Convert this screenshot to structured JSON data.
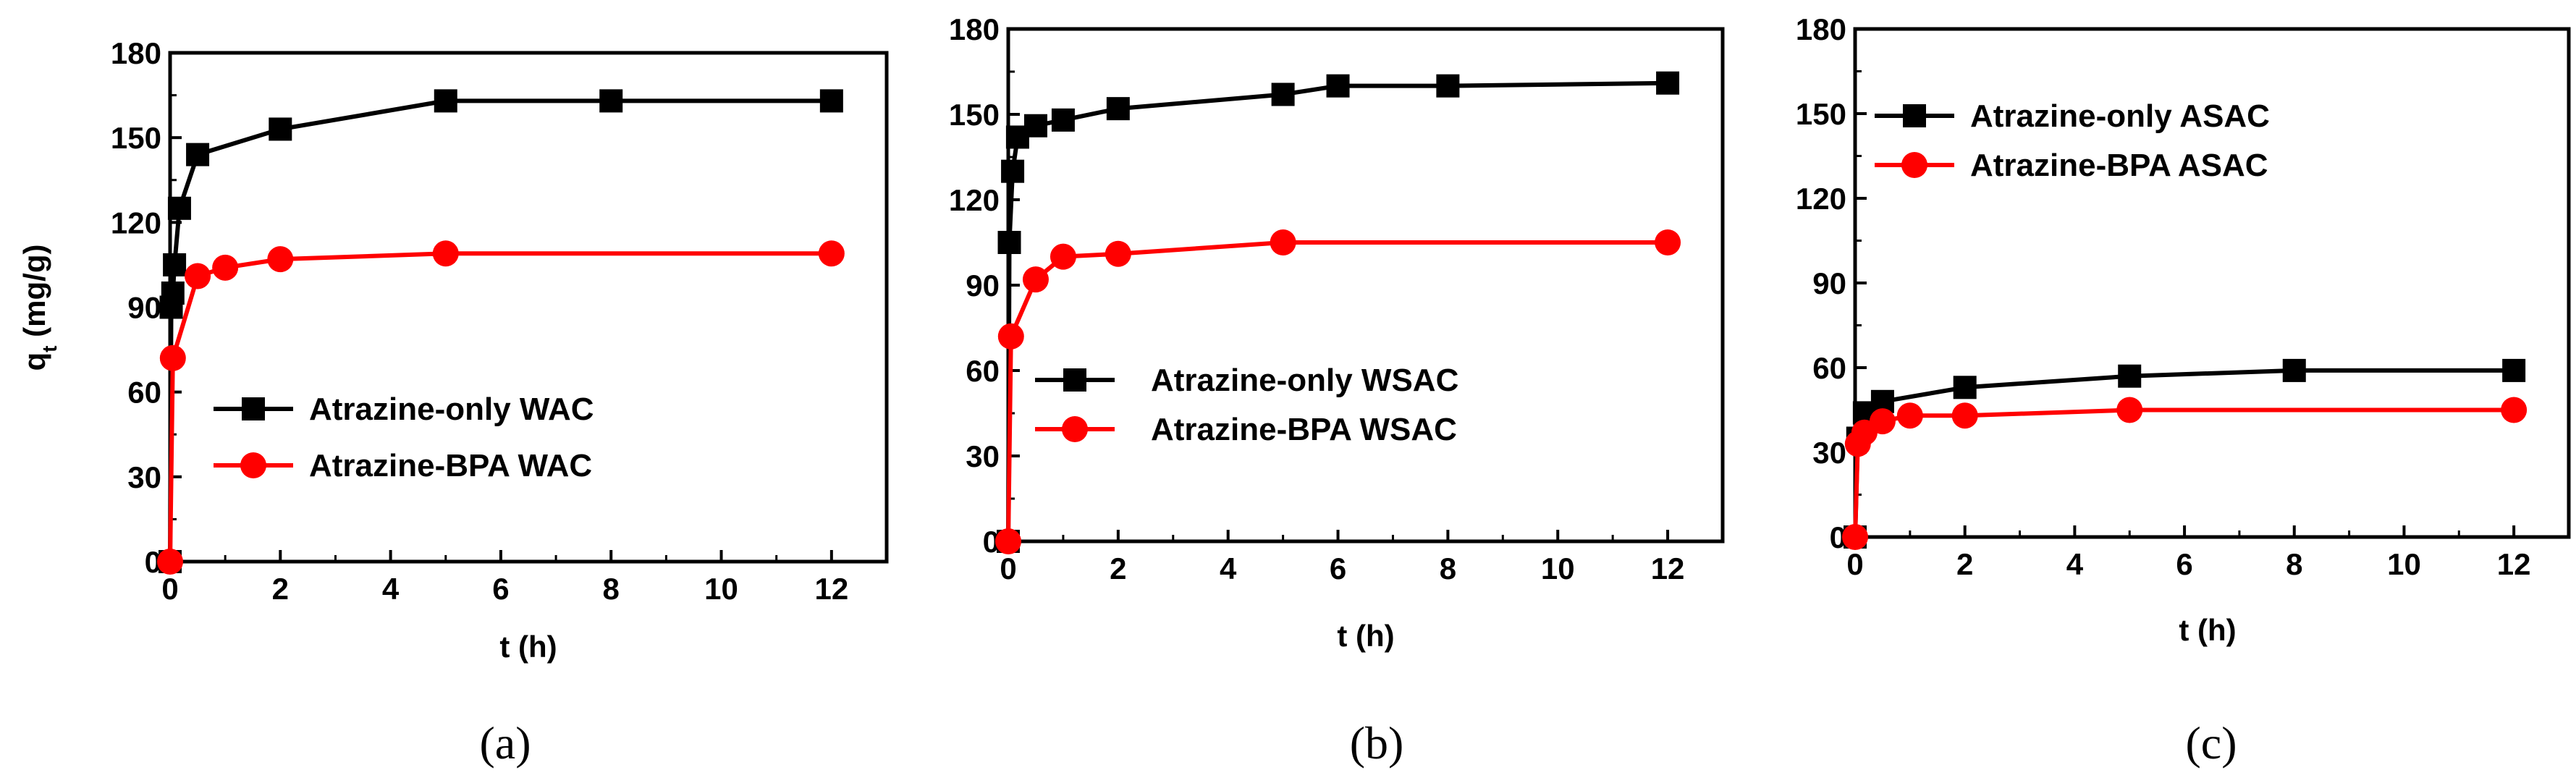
{
  "chart_data": [
    {
      "type": "line",
      "panel_label": "(a)",
      "xlabel": "t (h)",
      "ylabel": "q",
      "ylabel_sub": "t",
      "ylabel_unit": " (mg/g)",
      "xlim": [
        0,
        13
      ],
      "ylim": [
        0,
        180
      ],
      "xticks": [
        0,
        2,
        4,
        6,
        8,
        10,
        12
      ],
      "yticks": [
        0,
        30,
        60,
        90,
        120,
        150,
        180
      ],
      "grid": false,
      "legend_position": "lower-center",
      "series": [
        {
          "name": "Atrazine-only WAC",
          "color": "#000000",
          "marker": "square",
          "x": [
            0,
            0.02,
            0.05,
            0.08,
            0.17,
            0.5,
            2,
            5,
            8,
            12
          ],
          "y": [
            0,
            90,
            95,
            105,
            125,
            144,
            153,
            163,
            163,
            163
          ]
        },
        {
          "name": "Atrazine-BPA WAC",
          "color": "#ff0000",
          "marker": "circle",
          "x": [
            0,
            0.05,
            0.5,
            1,
            2,
            5,
            12
          ],
          "y": [
            0,
            72,
            101,
            104,
            107,
            109,
            109
          ]
        }
      ]
    },
    {
      "type": "line",
      "panel_label": "(b)",
      "xlabel": "t (h)",
      "ylabel": "",
      "xlim": [
        0,
        13
      ],
      "ylim": [
        0,
        180
      ],
      "xticks": [
        0,
        2,
        4,
        6,
        8,
        10,
        12
      ],
      "yticks": [
        0,
        30,
        60,
        90,
        120,
        150,
        180
      ],
      "grid": false,
      "legend_position": "center-right",
      "series": [
        {
          "name": "Atrazine-only WSAC",
          "color": "#000000",
          "marker": "square",
          "x": [
            0,
            0.02,
            0.08,
            0.17,
            0.5,
            1,
            2,
            5,
            6,
            8,
            12
          ],
          "y": [
            0,
            105,
            130,
            142,
            146,
            148,
            152,
            157,
            160,
            160,
            161
          ]
        },
        {
          "name": "Atrazine-BPA WSAC",
          "color": "#ff0000",
          "marker": "circle",
          "x": [
            0,
            0.05,
            0.5,
            1,
            2,
            5,
            12
          ],
          "y": [
            0,
            72,
            92,
            100,
            101,
            105,
            105
          ]
        }
      ]
    },
    {
      "type": "line",
      "panel_label": "(c)",
      "xlabel": "t (h)",
      "ylabel": "",
      "xlim": [
        0,
        13
      ],
      "ylim": [
        0,
        180
      ],
      "xticks": [
        0,
        2,
        4,
        6,
        8,
        10,
        12
      ],
      "yticks": [
        0,
        30,
        60,
        90,
        120,
        150,
        180
      ],
      "grid": false,
      "legend_position": "top-left",
      "series": [
        {
          "name": "Atrazine-only ASAC",
          "color": "#000000",
          "marker": "square",
          "x": [
            0,
            0.05,
            0.17,
            0.5,
            2,
            5,
            8,
            12
          ],
          "y": [
            0,
            35,
            44,
            48,
            53,
            57,
            59,
            59
          ]
        },
        {
          "name": "Atrazine-BPA  ASAC",
          "color": "#ff0000",
          "marker": "circle",
          "x": [
            0,
            0.05,
            0.17,
            0.5,
            1,
            2,
            5,
            12
          ],
          "y": [
            0,
            33,
            37,
            41,
            43,
            43,
            45,
            45
          ]
        }
      ]
    }
  ]
}
